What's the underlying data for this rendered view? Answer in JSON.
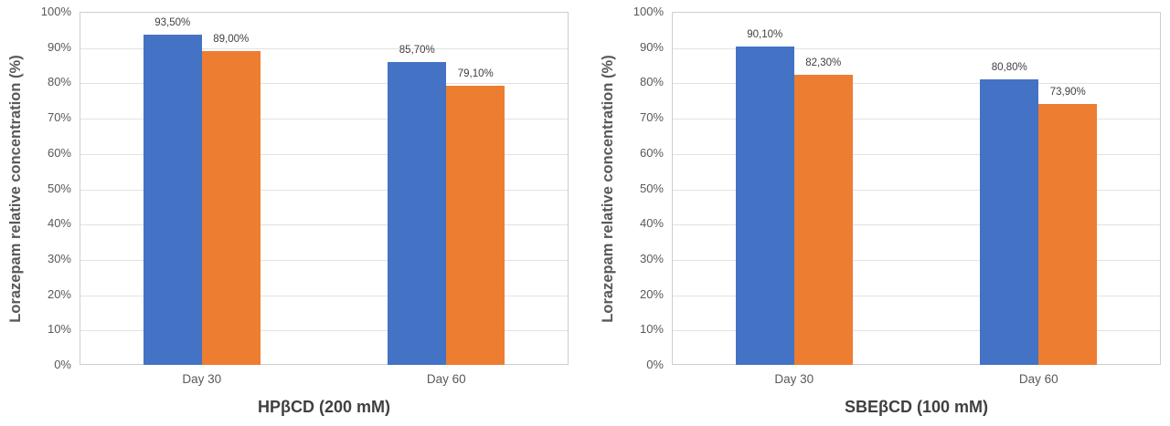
{
  "chart_data": [
    {
      "type": "bar",
      "title": "HPβCD (200 mM)",
      "ylabel": "Lorazepam relative concentration (%)",
      "categories": [
        "Day 30",
        "Day 60"
      ],
      "series": [
        {
          "name": "blue-series",
          "color": "#4472C4",
          "values": [
            93.5,
            85.7
          ],
          "labels": [
            "93,50%",
            "85,70%"
          ]
        },
        {
          "name": "orange-series",
          "color": "#ED7D31",
          "values": [
            89.0,
            79.1
          ],
          "labels": [
            "89,00%",
            "79,10%"
          ]
        }
      ],
      "ylim": [
        0,
        100
      ],
      "ytick_step": 10,
      "ytick_labels": [
        "0%",
        "10%",
        "20%",
        "30%",
        "40%",
        "50%",
        "60%",
        "70%",
        "80%",
        "90%",
        "100%"
      ],
      "grid": true,
      "legend": false
    },
    {
      "type": "bar",
      "title": "SBEβCD (100 mM)",
      "ylabel": "Lorazepam relative concentration (%)",
      "categories": [
        "Day 30",
        "Day 60"
      ],
      "series": [
        {
          "name": "blue-series",
          "color": "#4472C4",
          "values": [
            90.1,
            80.8
          ],
          "labels": [
            "90,10%",
            "80,80%"
          ]
        },
        {
          "name": "orange-series",
          "color": "#ED7D31",
          "values": [
            82.3,
            73.9
          ],
          "labels": [
            "82,30%",
            "73,90%"
          ]
        }
      ],
      "ylim": [
        0,
        100
      ],
      "ytick_step": 10,
      "ytick_labels": [
        "0%",
        "10%",
        "20%",
        "30%",
        "40%",
        "50%",
        "60%",
        "70%",
        "80%",
        "90%",
        "100%"
      ],
      "grid": true,
      "legend": false
    }
  ]
}
